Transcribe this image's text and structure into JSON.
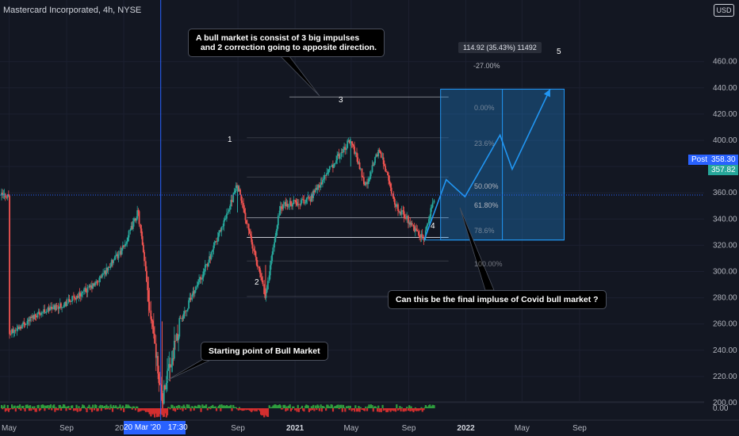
{
  "header": {
    "title": "Mastercard Incorporated, 4h, NYSE",
    "currency_button": "USD"
  },
  "annotations": {
    "bull_note": "A bull market is consist of 3 big impulses\n  and 2 correction going to apposite direction.",
    "final_note": "Can this be the final impluse of Covid bull market ?",
    "start_note": "Starting point of Bull Market"
  },
  "wave_labels": [
    "1",
    "2",
    "3",
    "4",
    "5"
  ],
  "measure_label": "114.92 (35.43%) 11492",
  "fib_labels": [
    "-27.00%",
    "0.00%",
    "23.6%",
    "50.00%",
    "61.80%",
    "78.6%",
    "100.00%"
  ],
  "price_tags": {
    "post_label": "Post",
    "post_price": "358.30",
    "last_price": "357.82"
  },
  "cursor_labels": {
    "date": "20 Mar '20",
    "time": "17:30"
  },
  "colors": {
    "background": "#131722",
    "up": "#26a69a",
    "down": "#ef5350",
    "accent": "#2962ff",
    "projection": "#2196f3"
  },
  "chart_data": {
    "type": "candlestick",
    "title": "Mastercard Incorporated, 4h, NYSE",
    "y_axis_ticks": [
      "460.00",
      "440.00",
      "420.00",
      "400.00",
      "380.00",
      "360.00",
      "340.00",
      "320.00",
      "300.00",
      "280.00",
      "260.00",
      "240.00",
      "220.00",
      "200.00"
    ],
    "x_axis_ticks": [
      "May",
      "Sep",
      "2020",
      "Sep",
      "2021",
      "May",
      "Sep",
      "2022",
      "May",
      "Sep"
    ],
    "volume_axis_tick": "0.00",
    "ylim": [
      190,
      470
    ],
    "price_path": [
      {
        "date": "2019-05",
        "price": 252
      },
      {
        "date": "2019-07",
        "price": 268
      },
      {
        "date": "2019-09",
        "price": 276
      },
      {
        "date": "2019-11",
        "price": 290
      },
      {
        "date": "2020-01",
        "price": 318
      },
      {
        "date": "2020-02",
        "price": 346
      },
      {
        "date": "2020-03-23",
        "price": 200
      },
      {
        "date": "2020-05",
        "price": 262
      },
      {
        "date": "2020-07",
        "price": 308
      },
      {
        "date": "2020-08-31",
        "price": 366
      },
      {
        "date": "2020-10-30",
        "price": 281
      },
      {
        "date": "2020-12",
        "price": 350
      },
      {
        "date": "2021-02",
        "price": 355
      },
      {
        "date": "2021-04-30",
        "price": 401
      },
      {
        "date": "2021-06",
        "price": 365
      },
      {
        "date": "2021-07",
        "price": 394
      },
      {
        "date": "2021-08",
        "price": 352
      },
      {
        "date": "2021-10-04",
        "price": 324
      },
      {
        "date": "2021-10-26",
        "price": 358
      }
    ],
    "projection_path": [
      {
        "date": "2021-10-04",
        "price": 324
      },
      {
        "date": "2021-11-20",
        "price": 370
      },
      {
        "date": "2021-12-30",
        "price": 357
      },
      {
        "date": "2022-03-15",
        "price": 404
      },
      {
        "date": "2022-04-10",
        "price": 378
      },
      {
        "date": "2022-06-30",
        "price": 439
      }
    ],
    "fib_levels": [
      {
        "label": "-27.00%",
        "price": 433
      },
      {
        "label": "0.00%",
        "price": 402
      },
      {
        "label": "23.6%",
        "price": 372
      },
      {
        "label": "50.00%",
        "price": 341
      },
      {
        "label": "61.80%",
        "price": 326
      },
      {
        "label": "78.6%",
        "price": 308
      },
      {
        "label": "100.00%",
        "price": 281
      }
    ],
    "measure_box": {
      "price_from": 324,
      "price_to": 439,
      "change": "114.92 (35.43%) 11492"
    },
    "last_price": 357.82,
    "post_price": 358.3
  }
}
